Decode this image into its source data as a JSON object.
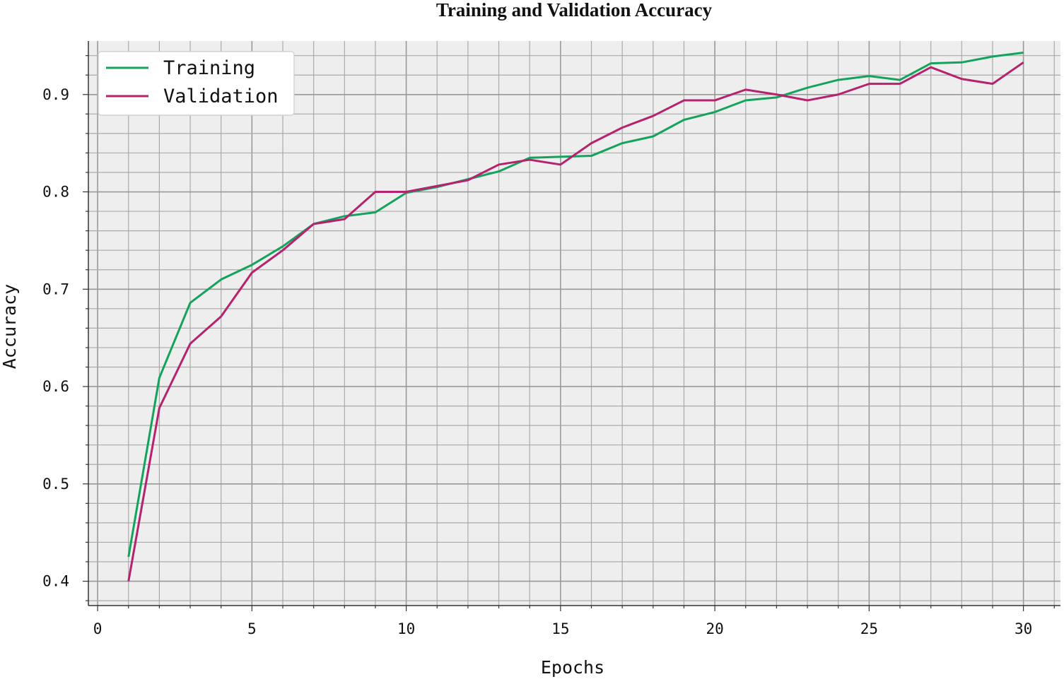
{
  "chart_data": {
    "type": "line",
    "title": "Training and Validation Accuracy",
    "xlabel": "Epochs",
    "ylabel": "Accuracy",
    "xlim": [
      -0.3,
      31.2
    ],
    "ylim": [
      0.375,
      0.955
    ],
    "xticks": [
      0,
      5,
      10,
      15,
      20,
      25,
      30
    ],
    "xtick_labels": [
      "0",
      "5",
      "10",
      "15",
      "20",
      "25",
      "30"
    ],
    "yticks": [
      0.4,
      0.5,
      0.6,
      0.7,
      0.8,
      0.9
    ],
    "ytick_labels": [
      "0.4",
      "0.5",
      "0.6",
      "0.7",
      "0.8",
      "0.9"
    ],
    "grid": true,
    "legend_position": "top-left",
    "x": [
      1,
      2,
      3,
      4,
      5,
      6,
      7,
      8,
      9,
      10,
      11,
      12,
      13,
      14,
      15,
      16,
      17,
      18,
      19,
      20,
      21,
      22,
      23,
      24,
      25,
      26,
      27,
      28,
      29,
      30
    ],
    "series": [
      {
        "name": "Training",
        "color": "#14a35c",
        "values": [
          0.425,
          0.609,
          0.686,
          0.71,
          0.725,
          0.744,
          0.767,
          0.775,
          0.779,
          0.799,
          0.805,
          0.813,
          0.821,
          0.835,
          0.836,
          0.837,
          0.85,
          0.857,
          0.874,
          0.882,
          0.894,
          0.897,
          0.907,
          0.915,
          0.919,
          0.915,
          0.932,
          0.933,
          0.939,
          0.943
        ]
      },
      {
        "name": "Validation",
        "color": "#b5226e",
        "values": [
          0.4,
          0.578,
          0.644,
          0.672,
          0.717,
          0.74,
          0.767,
          0.772,
          0.8,
          0.8,
          0.806,
          0.812,
          0.828,
          0.833,
          0.828,
          0.85,
          0.866,
          0.878,
          0.894,
          0.894,
          0.905,
          0.9,
          0.894,
          0.9,
          0.911,
          0.911,
          0.928,
          0.916,
          0.911,
          0.933
        ]
      }
    ]
  }
}
